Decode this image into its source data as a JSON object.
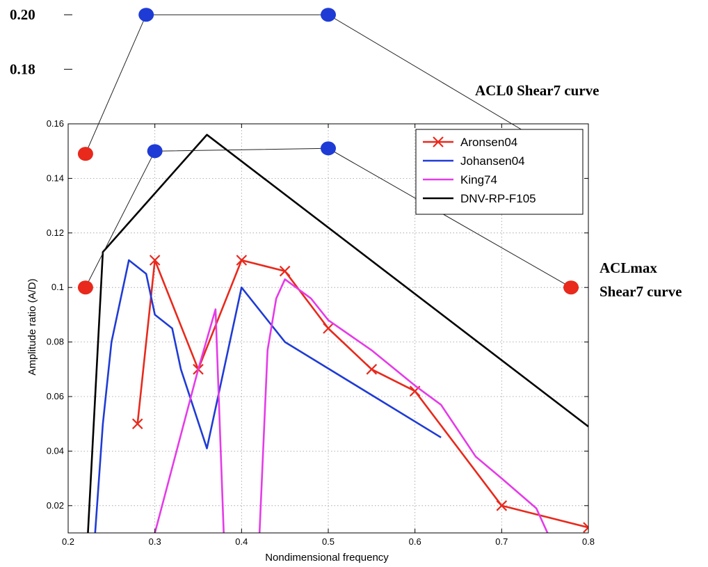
{
  "chart_data": {
    "type": "line",
    "xlabel": "Nondimensional frequency",
    "ylabel": "Amplitude ratio (A/D)",
    "xlim": [
      0.2,
      0.8
    ],
    "ylim": [
      0.01,
      0.16
    ],
    "xticks": [
      "0.2",
      "0.3",
      "0.4",
      "0.5",
      "0.6",
      "0.7",
      "0.8"
    ],
    "yticks": [
      "0.02",
      "0.04",
      "0.06",
      "0.08",
      "0.1",
      "0.12",
      "0.14",
      "0.16"
    ],
    "grid": true,
    "legend_position": "top-right",
    "series": [
      {
        "name": "Aronsen04",
        "color": "#e8291c",
        "marker": "x",
        "x": [
          0.28,
          0.3,
          0.35,
          0.4,
          0.45,
          0.5,
          0.55,
          0.6,
          0.7,
          0.8
        ],
        "y": [
          0.05,
          0.11,
          0.07,
          0.11,
          0.106,
          0.085,
          0.07,
          0.062,
          0.02,
          0.012
        ]
      },
      {
        "name": "Johansen04",
        "color": "#1f3bd6",
        "marker": "none",
        "x": [
          0.23,
          0.24,
          0.25,
          0.27,
          0.29,
          0.3,
          0.32,
          0.33,
          0.36,
          0.4,
          0.45,
          0.63
        ],
        "y": [
          0.005,
          0.05,
          0.08,
          0.11,
          0.105,
          0.09,
          0.085,
          0.07,
          0.041,
          0.1,
          0.08,
          0.045
        ]
      },
      {
        "name": "King74",
        "color": "#e53be8",
        "marker": "none",
        "x": [
          0.3,
          0.35,
          0.37,
          0.38,
          0.42,
          0.43,
          0.44,
          0.45,
          0.48,
          0.5,
          0.55,
          0.6,
          0.63,
          0.67,
          0.7,
          0.74,
          0.76
        ],
        "y": [
          0.01,
          0.07,
          0.092,
          0.005,
          0.005,
          0.077,
          0.096,
          0.103,
          0.096,
          0.088,
          0.077,
          0.064,
          0.057,
          0.038,
          0.03,
          0.019,
          0.005
        ]
      },
      {
        "name": "DNV-RP-F105",
        "color": "#000000",
        "marker": "none",
        "x": [
          0.222,
          0.24,
          0.36,
          0.8
        ],
        "y": [
          0.005,
          0.113,
          0.156,
          0.049
        ]
      }
    ],
    "annotations": [
      {
        "label": "ACL0 Shear7 curve",
        "line_color": "#222222",
        "points": [
          {
            "x": 0.22,
            "y": 0.149,
            "color": "#e8291c"
          },
          {
            "x": 0.29,
            "y": 0.2,
            "color": "#1f3bd6"
          },
          {
            "x": 0.5,
            "y": 0.2,
            "color": "#1f3bd6"
          },
          {
            "x": 0.77,
            "y": 0.149,
            "color": "#e8291c"
          }
        ]
      },
      {
        "label_lines": [
          "ACLmax",
          "Shear7 curve"
        ],
        "line_color": "#222222",
        "points": [
          {
            "x": 0.22,
            "y": 0.1,
            "color": "#e8291c"
          },
          {
            "x": 0.3,
            "y": 0.15,
            "color": "#1f3bd6"
          },
          {
            "x": 0.5,
            "y": 0.151,
            "color": "#1f3bd6"
          },
          {
            "x": 0.78,
            "y": 0.1,
            "color": "#e8291c"
          }
        ]
      }
    ],
    "outer_yticks": [
      "0.20",
      "0.18"
    ]
  }
}
